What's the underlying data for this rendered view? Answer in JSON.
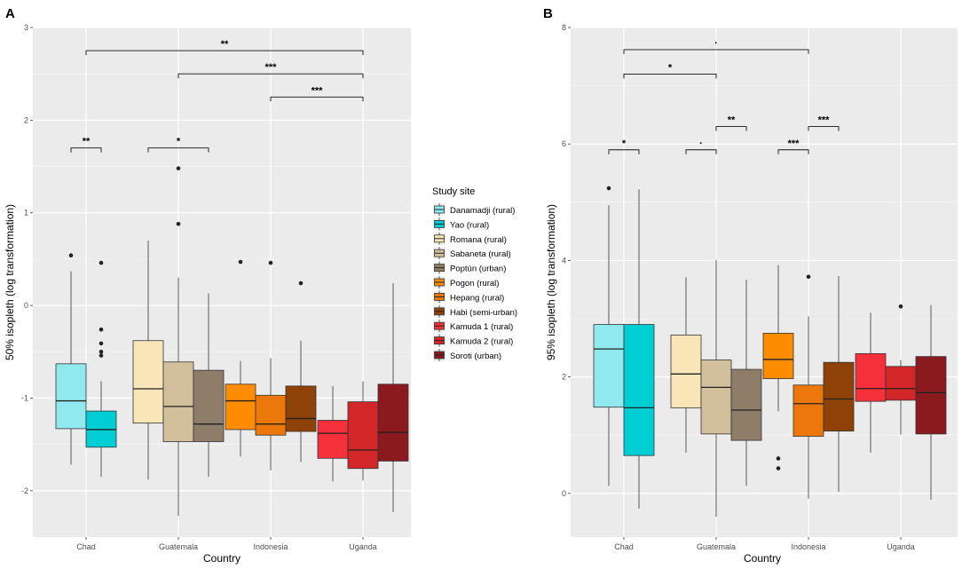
{
  "chart_data": [
    {
      "type": "box",
      "panel_label": "A",
      "xlabel": "Country",
      "ylabel": "50% isopleth (log transformation)",
      "ylim": [
        -2.5,
        3.0
      ],
      "yticks": [
        -2,
        -1,
        0,
        1,
        2,
        3
      ],
      "categories": [
        "Chad",
        "Guatemala",
        "Indonesia",
        "Uganda"
      ],
      "boxes": [
        {
          "country": "Chad",
          "site": "Danamadji (rural)",
          "min": -1.72,
          "q1": -1.33,
          "median": -1.03,
          "q3": -0.63,
          "max": 0.37,
          "outliers": [
            0.54
          ]
        },
        {
          "country": "Chad",
          "site": "Yao (rural)",
          "min": -1.85,
          "q1": -1.53,
          "median": -1.34,
          "q3": -1.14,
          "max": -0.82,
          "outliers": [
            0.46,
            -0.26,
            -0.41,
            -0.5,
            -0.54
          ]
        },
        {
          "country": "Guatemala",
          "site": "Romana (rural)",
          "min": -1.88,
          "q1": -1.27,
          "median": -0.9,
          "q3": -0.38,
          "max": 0.7,
          "outliers": []
        },
        {
          "country": "Guatemala",
          "site": "Sabaneta (rural)",
          "min": -2.27,
          "q1": -1.47,
          "median": -1.09,
          "q3": -0.61,
          "max": 0.3,
          "outliers": [
            1.48,
            0.88
          ]
        },
        {
          "country": "Guatemala",
          "site": "Poptún (urban)",
          "min": -1.85,
          "q1": -1.47,
          "median": -1.28,
          "q3": -0.7,
          "max": 0.13,
          "outliers": []
        },
        {
          "country": "Indonesia",
          "site": "Pogon (rural)",
          "min": -1.63,
          "q1": -1.34,
          "median": -1.03,
          "q3": -0.85,
          "max": -0.6,
          "outliers": [
            0.47
          ]
        },
        {
          "country": "Indonesia",
          "site": "Hepang (rural)",
          "min": -1.78,
          "q1": -1.4,
          "median": -1.28,
          "q3": -0.97,
          "max": -0.57,
          "outliers": [
            0.46
          ]
        },
        {
          "country": "Indonesia",
          "site": "Habi (semi-urban)",
          "min": -1.69,
          "q1": -1.36,
          "median": -1.22,
          "q3": -0.87,
          "max": -0.38,
          "outliers": [
            0.24
          ]
        },
        {
          "country": "Uganda",
          "site": "Kamuda 1 (rural)",
          "min": -1.9,
          "q1": -1.65,
          "median": -1.38,
          "q3": -1.24,
          "max": -0.87,
          "outliers": []
        },
        {
          "country": "Uganda",
          "site": "Kamuda 2 (rural)",
          "min": -1.89,
          "q1": -1.76,
          "median": -1.56,
          "q3": -1.04,
          "max": -0.82,
          "outliers": []
        },
        {
          "country": "Uganda",
          "site": "Soroti (urban)",
          "min": -2.23,
          "q1": -1.68,
          "median": -1.37,
          "q3": -0.85,
          "max": 0.24,
          "outliers": []
        }
      ],
      "annotations": [
        {
          "from_box": 0,
          "to_box": 1,
          "y": 1.7,
          "label": "**"
        },
        {
          "from_box": 2,
          "to_box": 4,
          "y": 1.7,
          "label": "*"
        },
        {
          "from_cat": 0,
          "to_cat": 3,
          "y": 2.75,
          "label": "**"
        },
        {
          "from_cat": 1,
          "to_cat": 3,
          "y": 2.5,
          "label": "***"
        },
        {
          "from_cat": 2,
          "to_cat": 3,
          "y": 2.25,
          "label": "***"
        }
      ]
    },
    {
      "type": "box",
      "panel_label": "B",
      "xlabel": "Country",
      "ylabel": "95% isopleth (log transformation)",
      "ylim": [
        -0.75,
        8.0
      ],
      "yticks": [
        0,
        2,
        4,
        6,
        8
      ],
      "categories": [
        "Chad",
        "Guatemala",
        "Indonesia",
        "Uganda"
      ],
      "boxes": [
        {
          "country": "Chad",
          "site": "Danamadji (rural)",
          "min": 0.13,
          "q1": 1.48,
          "median": 2.48,
          "q3": 2.9,
          "max": 4.95,
          "outliers": [
            5.24
          ]
        },
        {
          "country": "Chad",
          "site": "Yao (rural)",
          "min": -0.26,
          "q1": 0.65,
          "median": 1.47,
          "q3": 2.9,
          "max": 5.22,
          "outliers": []
        },
        {
          "country": "Guatemala",
          "site": "Romana (rural)",
          "min": 0.7,
          "q1": 1.47,
          "median": 2.05,
          "q3": 2.72,
          "max": 3.71,
          "outliers": []
        },
        {
          "country": "Guatemala",
          "site": "Sabaneta (rural)",
          "min": -0.4,
          "q1": 1.02,
          "median": 1.82,
          "q3": 2.29,
          "max": 4.01,
          "outliers": []
        },
        {
          "country": "Guatemala",
          "site": "Poptún (urban)",
          "min": 0.13,
          "q1": 0.91,
          "median": 1.43,
          "q3": 2.13,
          "max": 3.67,
          "outliers": []
        },
        {
          "country": "Indonesia",
          "site": "Pogon (rural)",
          "min": 1.41,
          "q1": 1.97,
          "median": 2.3,
          "q3": 2.75,
          "max": 3.92,
          "outliers": [
            0.6,
            0.43
          ]
        },
        {
          "country": "Indonesia",
          "site": "Hepang (rural)",
          "min": -0.09,
          "q1": 0.98,
          "median": 1.54,
          "q3": 1.86,
          "max": 3.04,
          "outliers": [
            3.72
          ]
        },
        {
          "country": "Indonesia",
          "site": "Habi (semi-urban)",
          "min": 0.03,
          "q1": 1.07,
          "median": 1.62,
          "q3": 2.25,
          "max": 3.73,
          "outliers": []
        },
        {
          "country": "Uganda",
          "site": "Kamuda 1 (rural)",
          "min": 0.7,
          "q1": 1.58,
          "median": 1.8,
          "q3": 2.4,
          "max": 3.1,
          "outliers": []
        },
        {
          "country": "Uganda",
          "site": "Kamuda 2 (rural)",
          "min": 1.01,
          "q1": 1.6,
          "median": 1.8,
          "q3": 2.18,
          "max": 2.29,
          "outliers": [
            3.21
          ]
        },
        {
          "country": "Uganda",
          "site": "Soroti (urban)",
          "min": -0.11,
          "q1": 1.02,
          "median": 1.73,
          "q3": 2.35,
          "max": 3.23,
          "outliers": []
        }
      ],
      "annotations": [
        {
          "from_box": 0,
          "to_box": 1,
          "y": 5.9,
          "label": "*"
        },
        {
          "from_box": 2,
          "to_box": 3,
          "y": 5.9,
          "label": "·"
        },
        {
          "from_box": 3,
          "to_box": 4,
          "y": 6.3,
          "label": "**"
        },
        {
          "from_box": 5,
          "to_box": 6,
          "y": 5.9,
          "label": "***"
        },
        {
          "from_box": 6,
          "to_box": 7,
          "y": 6.3,
          "label": "***"
        },
        {
          "from_cat": 0,
          "to_cat": 1,
          "y": 7.2,
          "label": "*"
        },
        {
          "from_cat": 0,
          "to_cat": 2,
          "y": 7.62,
          "label": "·"
        }
      ]
    }
  ],
  "legend": {
    "title": "Study site",
    "items": [
      {
        "label": "Danamadji (rural)",
        "color": "#8FE9EE"
      },
      {
        "label": "Yao (rural)",
        "color": "#00CDD4"
      },
      {
        "label": "Romana (rural)",
        "color": "#F9E6B8"
      },
      {
        "label": "Sabaneta (rural)",
        "color": "#D2BF9B"
      },
      {
        "label": "Poptún (urban)",
        "color": "#8E7E69"
      },
      {
        "label": "Pogon (rural)",
        "color": "#FD8C00"
      },
      {
        "label": "Hepang (rural)",
        "color": "#EC780B"
      },
      {
        "label": "Habi (semi-urban)",
        "color": "#8E4207"
      },
      {
        "label": "Kamuda 1 (rural)",
        "color": "#F6303A"
      },
      {
        "label": "Kamuda 2 (rural)",
        "color": "#D22628"
      },
      {
        "label": "Soroti (urban)",
        "color": "#8B1A1F"
      }
    ]
  }
}
